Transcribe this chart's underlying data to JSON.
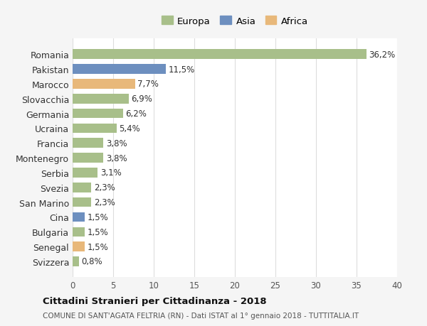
{
  "categories": [
    "Romania",
    "Pakistan",
    "Marocco",
    "Slovacchia",
    "Germania",
    "Ucraina",
    "Francia",
    "Montenegro",
    "Serbia",
    "Svezia",
    "San Marino",
    "Cina",
    "Bulgaria",
    "Senegal",
    "Svizzera"
  ],
  "values": [
    36.2,
    11.5,
    7.7,
    6.9,
    6.2,
    5.4,
    3.8,
    3.8,
    3.1,
    2.3,
    2.3,
    1.5,
    1.5,
    1.5,
    0.8
  ],
  "labels": [
    "36,2%",
    "11,5%",
    "7,7%",
    "6,9%",
    "6,2%",
    "5,4%",
    "3,8%",
    "3,8%",
    "3,1%",
    "2,3%",
    "2,3%",
    "1,5%",
    "1,5%",
    "1,5%",
    "0,8%"
  ],
  "continents": [
    "Europa",
    "Asia",
    "Africa",
    "Europa",
    "Europa",
    "Europa",
    "Europa",
    "Europa",
    "Europa",
    "Europa",
    "Europa",
    "Asia",
    "Europa",
    "Africa",
    "Europa"
  ],
  "colors": {
    "Europa": "#a8bf8a",
    "Asia": "#6d8fbf",
    "Africa": "#e8b87a"
  },
  "legend_order": [
    "Europa",
    "Asia",
    "Africa"
  ],
  "legend_colors": [
    "#a8bf8a",
    "#6d8fbf",
    "#e8b87a"
  ],
  "xlim": [
    0,
    40
  ],
  "xticks": [
    0,
    5,
    10,
    15,
    20,
    25,
    30,
    35,
    40
  ],
  "title": "Cittadini Stranieri per Cittadinanza - 2018",
  "subtitle": "COMUNE DI SANT'AGATA FELTRIA (RN) - Dati ISTAT al 1° gennaio 2018 - TUTTITALIA.IT",
  "bg_color": "#f5f5f5",
  "plot_bg_color": "#ffffff",
  "grid_color": "#dddddd",
  "bar_height": 0.65
}
